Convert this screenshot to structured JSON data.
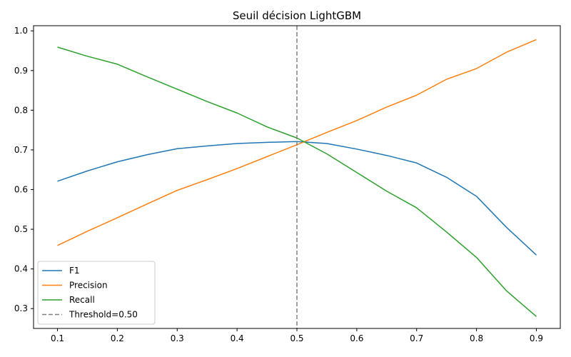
{
  "chart_data": {
    "type": "line",
    "title": "Seuil décision LightGBM",
    "xlabel": "",
    "ylabel": "",
    "xlim": [
      0.06,
      0.94
    ],
    "ylim": [
      0.25,
      1.013
    ],
    "xticks": [
      0.1,
      0.2,
      0.3,
      0.4,
      0.5,
      0.6,
      0.7,
      0.8,
      0.9
    ],
    "yticks": [
      0.3,
      0.4,
      0.5,
      0.6,
      0.7,
      0.8,
      0.9,
      1.0
    ],
    "xtick_labels": [
      "0.1",
      "0.2",
      "0.3",
      "0.4",
      "0.5",
      "0.6",
      "0.7",
      "0.8",
      "0.9"
    ],
    "ytick_labels": [
      "0.3",
      "0.4",
      "0.5",
      "0.6",
      "0.7",
      "0.8",
      "0.9",
      "1.0"
    ],
    "grid": false,
    "legend_position": "lower-left",
    "x": [
      0.1,
      0.15,
      0.2,
      0.25,
      0.3,
      0.35,
      0.4,
      0.45,
      0.5,
      0.55,
      0.6,
      0.65,
      0.7,
      0.75,
      0.8,
      0.85,
      0.9
    ],
    "series": [
      {
        "name": "F1",
        "color": "#1f77b4",
        "style": "solid",
        "values": [
          0.621,
          0.647,
          0.67,
          0.688,
          0.703,
          0.71,
          0.716,
          0.719,
          0.721,
          0.716,
          0.702,
          0.686,
          0.667,
          0.631,
          0.583,
          0.505,
          0.435
        ]
      },
      {
        "name": "Precision",
        "color": "#ff7f0e",
        "style": "solid",
        "values": [
          0.459,
          0.495,
          0.529,
          0.564,
          0.598,
          0.625,
          0.653,
          0.683,
          0.713,
          0.744,
          0.774,
          0.808,
          0.838,
          0.878,
          0.905,
          0.946,
          0.978
        ]
      },
      {
        "name": "Recall",
        "color": "#2ca02c",
        "style": "solid",
        "values": [
          0.959,
          0.936,
          0.916,
          0.884,
          0.853,
          0.822,
          0.793,
          0.758,
          0.73,
          0.69,
          0.643,
          0.596,
          0.554,
          0.493,
          0.429,
          0.345,
          0.28
        ]
      }
    ],
    "vline": {
      "name": "Threshold=0.50",
      "x": 0.5,
      "color": "#808080",
      "style": "dashed"
    }
  }
}
